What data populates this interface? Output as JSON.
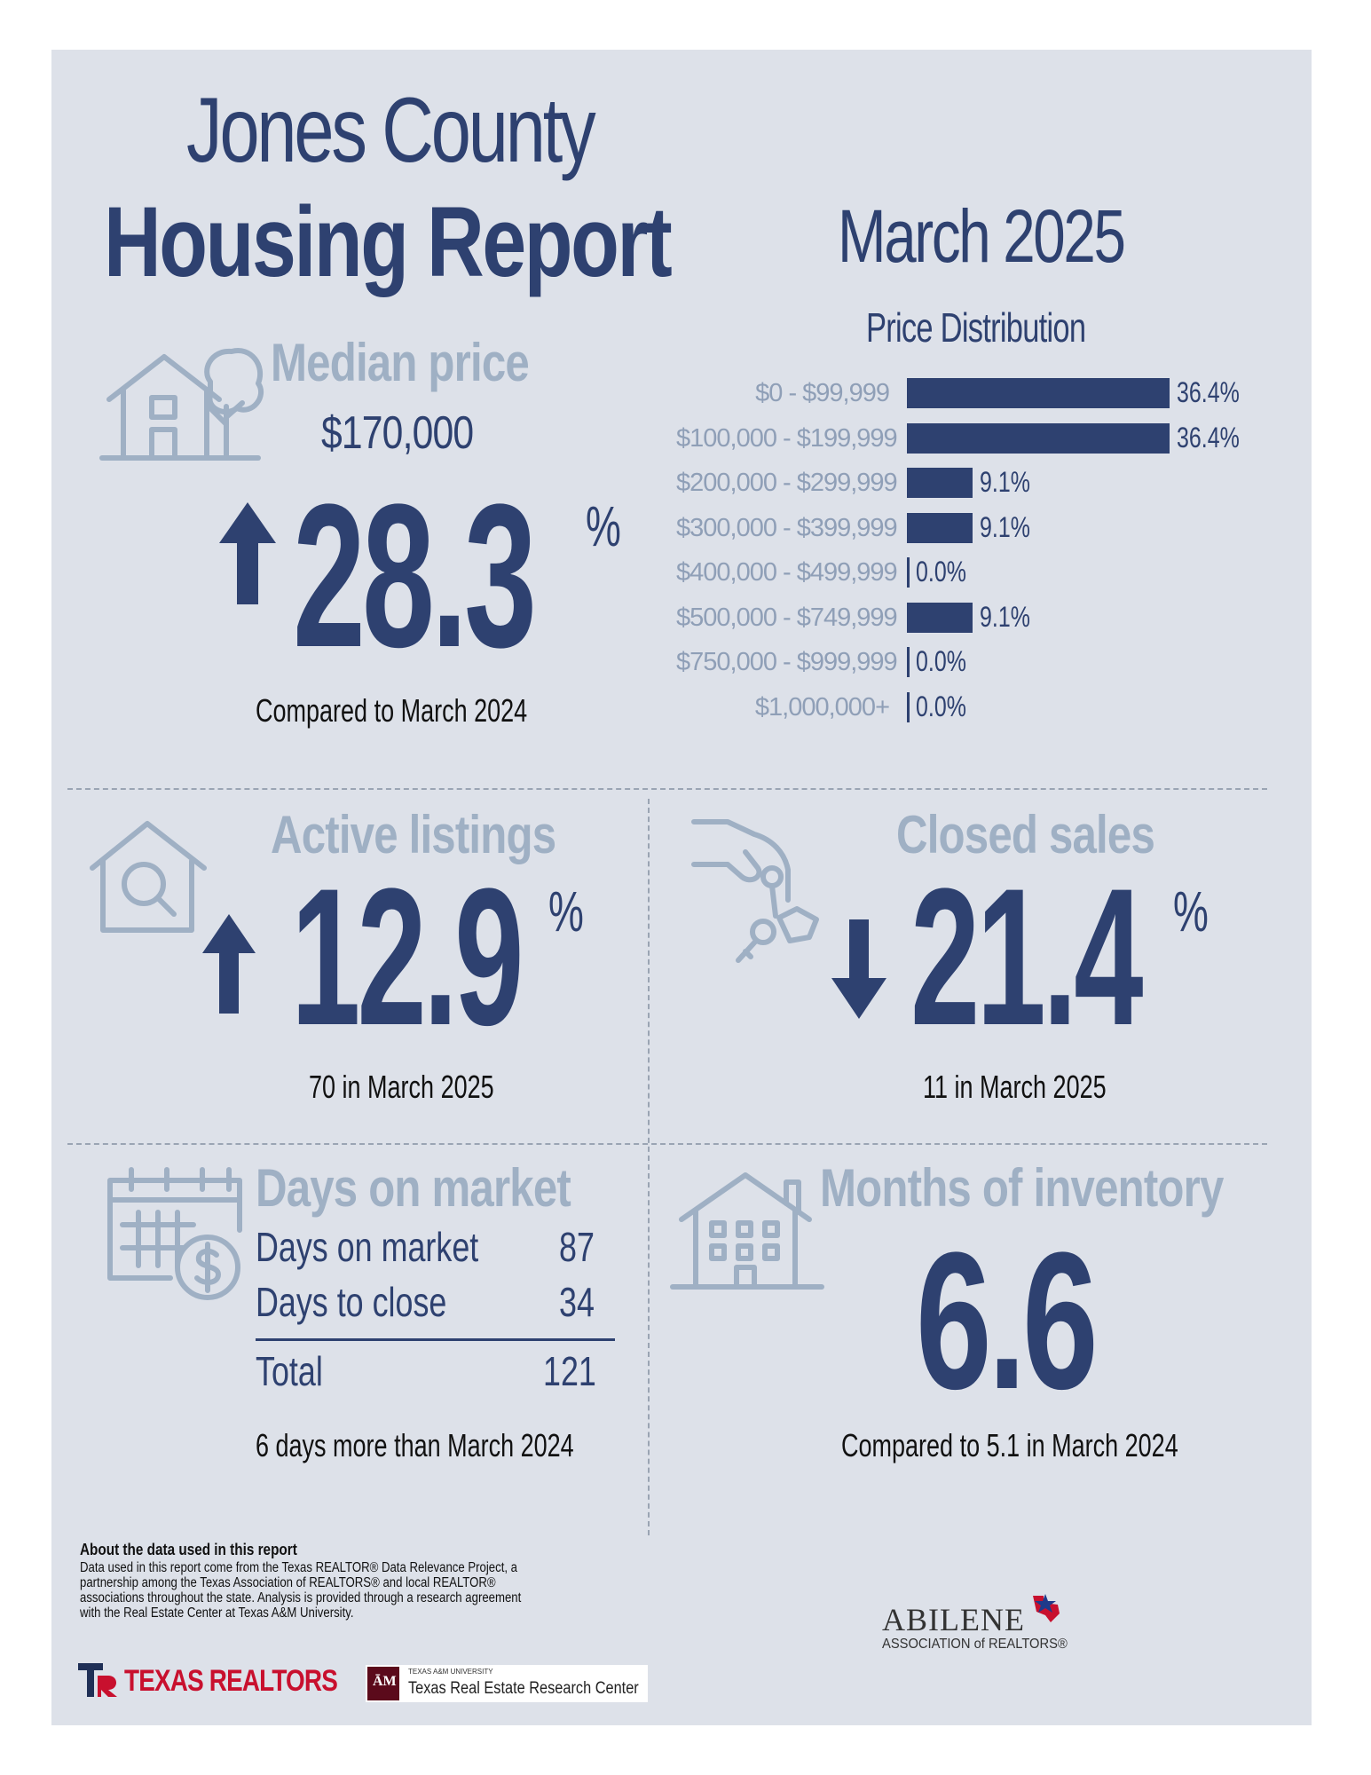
{
  "header": {
    "title_line1": "Jones County",
    "title_line2": "Housing Report",
    "period": "March 2025"
  },
  "median_price": {
    "heading": "Median price",
    "value": "$170,000",
    "change_pct": "28.3",
    "pct_symbol": "%",
    "direction": "up",
    "note": "Compared to March 2024"
  },
  "price_distribution": {
    "heading": "Price Distribution",
    "chart_data": {
      "type": "bar",
      "orientation": "horizontal",
      "title": "Price Distribution",
      "categories": [
        "$0 - $99,999",
        "$100,000 - $199,999",
        "$200,000 - $299,999",
        "$300,000 - $399,999",
        "$400,000 - $499,999",
        "$500,000 - $749,999",
        "$750,000 - $999,999",
        "$1,000,000+"
      ],
      "values": [
        36.4,
        36.4,
        9.1,
        9.1,
        0.0,
        9.1,
        0.0,
        0.0
      ],
      "value_labels": [
        "36.4%",
        "36.4%",
        "9.1%",
        "9.1%",
        "0.0%",
        "9.1%",
        "0.0%",
        "0.0%"
      ],
      "xlim": [
        0,
        36.4
      ]
    }
  },
  "active_listings": {
    "heading": "Active listings",
    "change_pct": "12.9",
    "pct_symbol": "%",
    "direction": "up",
    "note": "70 in March 2025"
  },
  "closed_sales": {
    "heading": "Closed sales",
    "change_pct": "21.4",
    "pct_symbol": "%",
    "direction": "down",
    "note": "11 in March 2025"
  },
  "days_on_market": {
    "heading": "Days on market",
    "rows": [
      {
        "label": "Days on market",
        "value": "87"
      },
      {
        "label": "Days to close",
        "value": "34"
      }
    ],
    "total_label": "Total",
    "total_value": "121",
    "note": "6 days more than March 2024"
  },
  "months_inventory": {
    "heading": "Months of inventory",
    "value": "6.6",
    "note": "Compared to 5.1 in March 2024"
  },
  "footer": {
    "about_heading": "About the data used in this report",
    "about_text_lines": [
      "Data used in this report come from the Texas REALTOR® Data Relevance Project, a",
      "partnership among the Texas Association of REALTORS® and local REALTOR®",
      "associations throughout the state. Analysis is provided through a research agreement",
      "with the Real Estate Center at Texas A&M University."
    ],
    "logo_texas_realtors": "TEXAS REALTORS",
    "logo_tamu_small": "TEXAS A&M UNIVERSITY",
    "logo_tamu": "Texas Real Estate Research Center",
    "logo_abilene": "ABILENE",
    "logo_abilene_sub": "ASSOCIATION of REALTORS®"
  },
  "colors": {
    "navy": "#2e4170",
    "slate": "#9fb0c4",
    "panel": "#dde1e9"
  }
}
